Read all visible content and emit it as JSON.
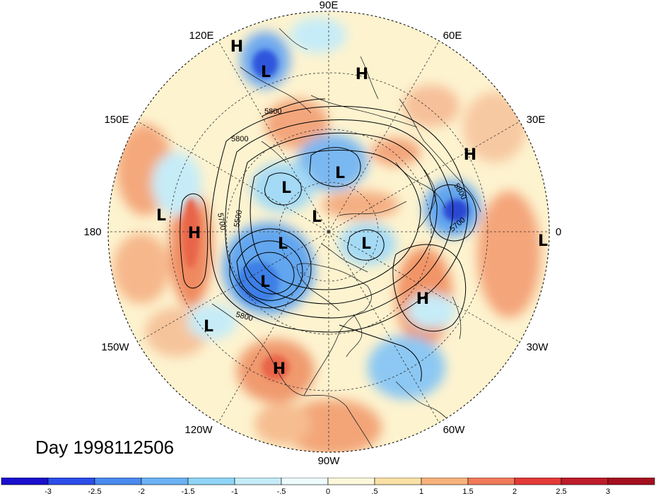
{
  "map": {
    "projection": "north-polar-stereographic",
    "longitude_labels": [
      "90E",
      "60E",
      "30E",
      "0",
      "30W",
      "60W",
      "90W",
      "120W",
      "150W",
      "180",
      "150E",
      "120E"
    ],
    "contour_labels": [
      "5800",
      "5800",
      "5700",
      "5500",
      "5800",
      "5800",
      "5700"
    ],
    "pressure_centers": [
      {
        "type": "H",
        "label": "H"
      },
      {
        "type": "L",
        "label": "L"
      },
      {
        "type": "H",
        "label": "H"
      },
      {
        "type": "L",
        "label": "L"
      },
      {
        "type": "L",
        "label": "L"
      },
      {
        "type": "H",
        "label": "H"
      },
      {
        "type": "L",
        "label": "L"
      },
      {
        "type": "H",
        "label": "H"
      },
      {
        "type": "L",
        "label": "L"
      },
      {
        "type": "L",
        "label": "L"
      },
      {
        "type": "L",
        "label": "L"
      },
      {
        "type": "L",
        "label": "L"
      },
      {
        "type": "H",
        "label": "H"
      },
      {
        "type": "L",
        "label": "L"
      },
      {
        "type": "L",
        "label": "L"
      },
      {
        "type": "H",
        "label": "H"
      }
    ],
    "colors": {
      "strong_neg": "#1d2fd6",
      "neg": "#4f9bf0",
      "weak_neg": "#a8e2f7",
      "near_zero": "#fdf6d4",
      "weak_pos": "#fbd9a0",
      "pos": "#f29d73",
      "strong_pos": "#e84f3d"
    }
  },
  "day_label": "Day 1998112506",
  "colorbar": {
    "tick_labels": [
      "-3",
      "-2.5",
      "-2",
      "-1.5",
      "-1",
      "-.5",
      "0",
      ".5",
      "1",
      "1.5",
      "2",
      "2.5",
      "3"
    ],
    "colors": [
      "#1a0fcc",
      "#2c4de8",
      "#4a8aee",
      "#6ab2f3",
      "#8fd4f6",
      "#c4ecf8",
      "#eefbfd",
      "#fdf8dc",
      "#fbe1a6",
      "#f7b27c",
      "#f07a5a",
      "#e23a37",
      "#bd1c2b",
      "#a50f20"
    ]
  }
}
